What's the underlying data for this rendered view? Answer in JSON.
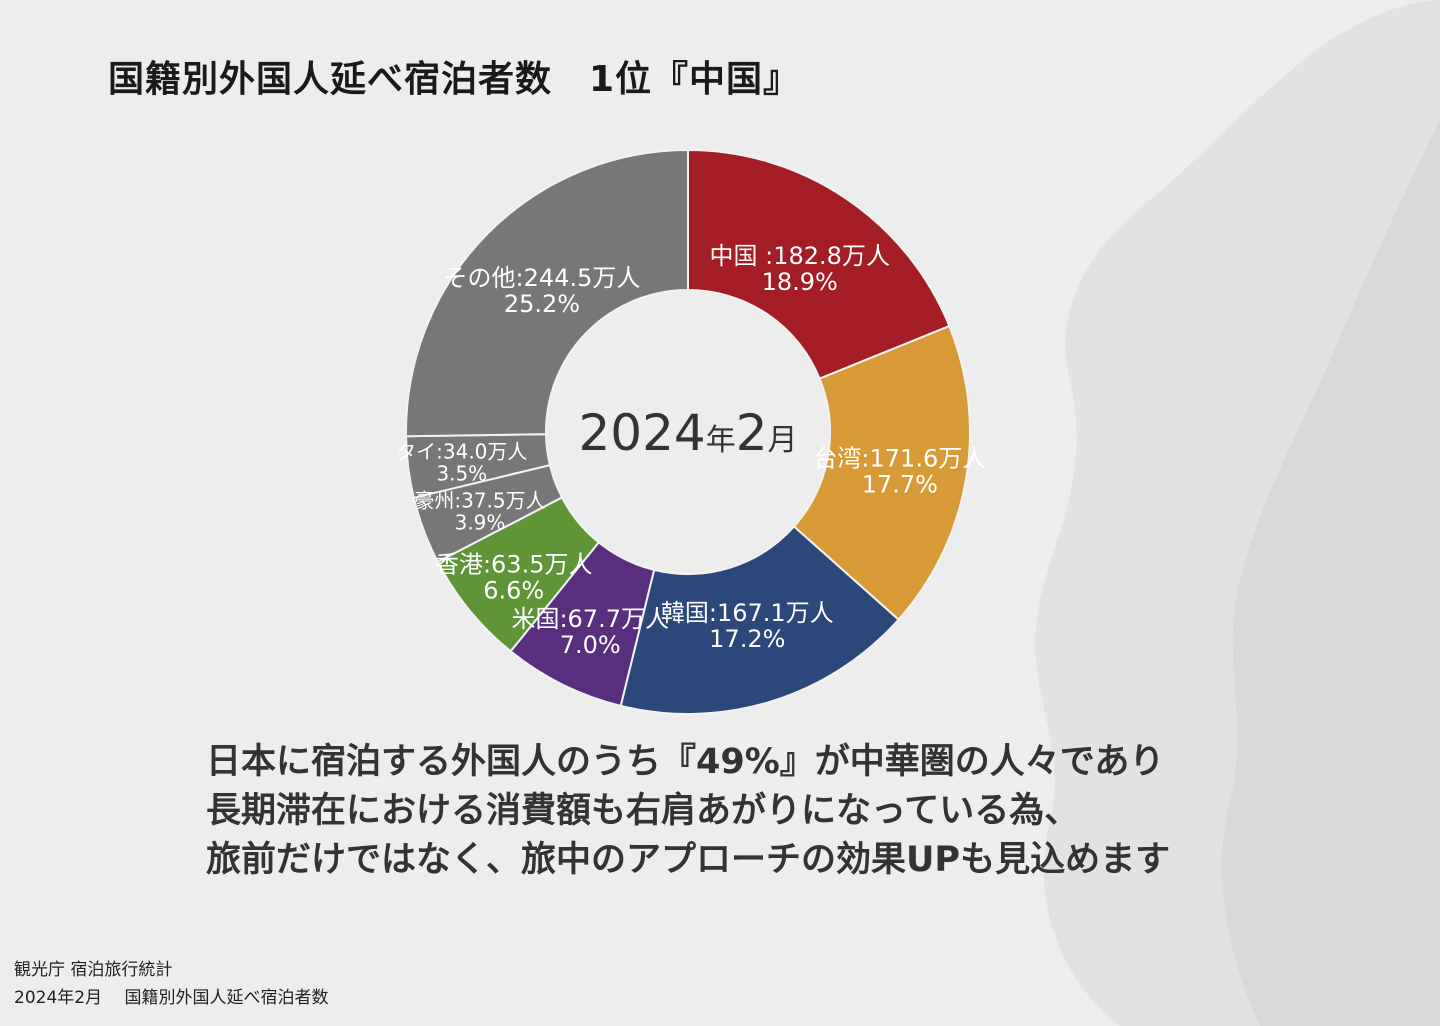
{
  "title": "国籍別外国人延べ宿泊者数　1位『中国』",
  "chart_data": {
    "type": "pie",
    "variant": "donut",
    "center_label": {
      "year": "2024",
      "year_suffix": "年",
      "month": "2",
      "month_suffix": "月"
    },
    "unit": "万人",
    "slices": [
      {
        "name": "中国 ",
        "value": 182.8,
        "percent": "18.9%",
        "color": "#a41d25"
      },
      {
        "name": "台湾",
        "value": 171.6,
        "percent": "17.7%",
        "color": "#d79a36"
      },
      {
        "name": "韓国",
        "value": 167.1,
        "percent": "17.2%",
        "color": "#2c477a"
      },
      {
        "name": "米国",
        "value": 67.7,
        "percent": "7.0%",
        "color": "#5a2e7e"
      },
      {
        "name": "香港",
        "value": 63.5,
        "percent": "6.6%",
        "color": "#609537"
      },
      {
        "name": "豪州",
        "value": 37.5,
        "percent": "3.9%",
        "color": "#777777"
      },
      {
        "name": "タイ",
        "value": 34.0,
        "percent": "3.5%",
        "color": "#777777"
      },
      {
        "name": "その他",
        "value": 244.5,
        "percent": "25.2%",
        "color": "#777777"
      }
    ]
  },
  "body": {
    "line1": "日本に宿泊する外国人のうち『49%』が中華圏の人々であり",
    "line2": "長期滞在における消費額も右肩あがりになっている為、",
    "line3": "旅前だけではなく、旅中のアプローチの効果UPも見込めます"
  },
  "source": {
    "line1": "観光庁 宿泊旅行統計",
    "line2": "2024年2月　 国籍別外国人延べ宿泊者数"
  }
}
